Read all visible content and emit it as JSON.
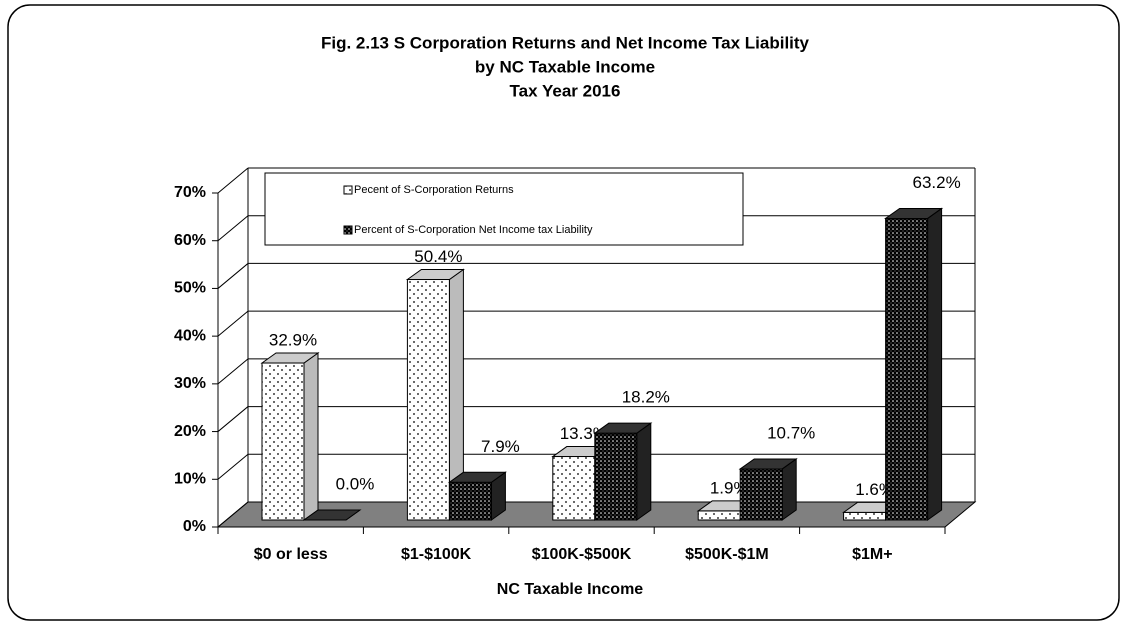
{
  "chart_data": {
    "type": "bar3d",
    "title": "Fig. 2.13  S Corporation Returns and Net Income Tax Liability",
    "subtitle": [
      "by NC Taxable Income",
      "Tax Year 2016"
    ],
    "x_label": "NC Taxable Income",
    "categories": [
      "$0 or less",
      "$1-$100K",
      "$100K-$500K",
      "$500K-$1M",
      "$1M+"
    ],
    "series": [
      {
        "name": "Pecent of S-Corporation Returns",
        "color": "#ffffff",
        "pattern": "sparse-dots",
        "values": [
          32.9,
          50.4,
          13.3,
          1.9,
          1.6
        ],
        "value_labels": [
          "32.9%",
          "50.4%",
          "13.3%",
          "1.9%",
          "1.6%"
        ]
      },
      {
        "name": "Percent of S-Corporation Net Income tax Liability",
        "color": "#000000",
        "pattern": "dense-dots",
        "values": [
          0.0,
          7.9,
          18.2,
          10.7,
          63.2
        ],
        "value_labels": [
          "0.0%",
          "7.9%",
          "18.2%",
          "10.7%",
          "63.2%"
        ]
      }
    ],
    "ylim": [
      0,
      70
    ],
    "yticks": [
      {
        "value": 0,
        "label": "0%"
      },
      {
        "value": 10,
        "label": "10%"
      },
      {
        "value": 20,
        "label": "20%"
      },
      {
        "value": 30,
        "label": "30%"
      },
      {
        "value": 40,
        "label": "40%"
      },
      {
        "value": 50,
        "label": "50%"
      },
      {
        "value": 60,
        "label": "60%"
      },
      {
        "value": 70,
        "label": "70%"
      }
    ],
    "grid": true,
    "legend": "upper left",
    "floor_color": "#808080"
  }
}
